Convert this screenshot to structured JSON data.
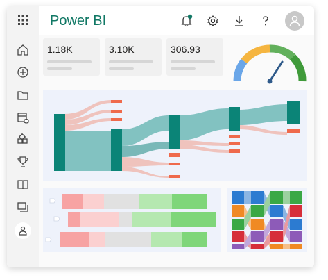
{
  "app": {
    "title": "Power BI"
  },
  "nav": {
    "items": [
      {
        "icon": "home-icon"
      },
      {
        "icon": "create-icon"
      },
      {
        "icon": "folder-icon"
      },
      {
        "icon": "datahub-icon"
      },
      {
        "icon": "apps-icon"
      },
      {
        "icon": "trophy-icon"
      },
      {
        "icon": "learn-icon"
      },
      {
        "icon": "workspaces-icon"
      },
      {
        "icon": "deployment-icon"
      }
    ]
  },
  "header": {
    "icons": [
      "notifications-icon",
      "settings-icon",
      "download-icon",
      "help-icon",
      "account-icon"
    ]
  },
  "kpis": [
    {
      "value": "1.18K"
    },
    {
      "value": "3.10K"
    },
    {
      "value": "306.93"
    }
  ],
  "gauge": {
    "level": 0.72
  },
  "colors": {
    "brand": "#117865",
    "teal": "#0b8477",
    "flow": "#82c2c1",
    "flow_pink": "#efc3bd",
    "accent_orange": "#ef6a4c",
    "notification_dot": "#117865"
  }
}
